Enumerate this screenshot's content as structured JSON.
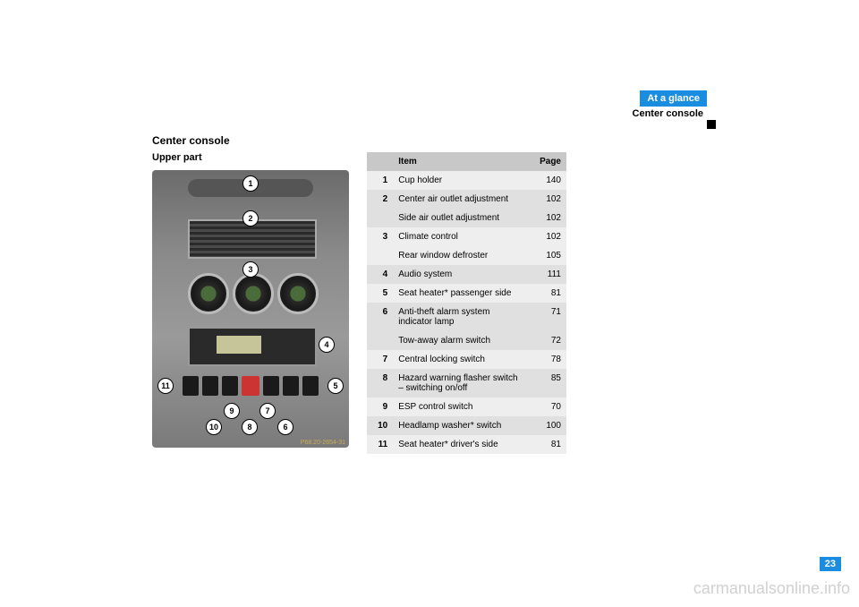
{
  "header": {
    "chapter": "At a glance",
    "section": "Center console"
  },
  "section_title": "Center console",
  "sub_title": "Upper part",
  "img_code": "P68.20-2654-31",
  "callouts": [
    "1",
    "2",
    "3",
    "4",
    "5",
    "6",
    "7",
    "8",
    "9",
    "10",
    "11"
  ],
  "table": {
    "headers": {
      "item": "Item",
      "page": "Page"
    },
    "rows": [
      {
        "num": "1",
        "item": "Cup holder",
        "page": "140",
        "shade": "odd"
      },
      {
        "num": "2",
        "item": "Center air outlet adjustment",
        "page": "102",
        "shade": "even"
      },
      {
        "num": "",
        "item": "Side air outlet adjustment",
        "page": "102",
        "shade": "even"
      },
      {
        "num": "3",
        "item": "Climate control",
        "page": "102",
        "shade": "odd"
      },
      {
        "num": "",
        "item": "Rear window defroster",
        "page": "105",
        "shade": "odd"
      },
      {
        "num": "4",
        "item": "Audio system",
        "page": "111",
        "shade": "even"
      },
      {
        "num": "5",
        "item": "Seat heater* passenger side",
        "page": "81",
        "shade": "odd"
      },
      {
        "num": "6",
        "item": "Anti-theft alarm system indicator lamp",
        "page": "71",
        "shade": "even"
      },
      {
        "num": "",
        "item": "Tow-away alarm switch",
        "page": "72",
        "shade": "even"
      },
      {
        "num": "7",
        "item": "Central locking switch",
        "page": "78",
        "shade": "odd"
      },
      {
        "num": "8",
        "item": "Hazard warning flasher switch – switching on/off",
        "page": "85",
        "shade": "even"
      },
      {
        "num": "9",
        "item": "ESP control switch",
        "page": "70",
        "shade": "odd"
      },
      {
        "num": "10",
        "item": "Headlamp washer* switch",
        "page": "100",
        "shade": "even"
      },
      {
        "num": "11",
        "item": "Seat heater* driver's side",
        "page": "81",
        "shade": "odd"
      }
    ]
  },
  "page_number": "23",
  "watermark": "carmanualsonline.info",
  "colors": {
    "header_blue": "#1a8de0",
    "table_header_bg": "#c8c8c8",
    "row_odd_bg": "#eeeeee",
    "row_even_bg": "#e0e0e0",
    "text": "#000000",
    "watermark": "rgba(120,120,120,0.35)"
  }
}
